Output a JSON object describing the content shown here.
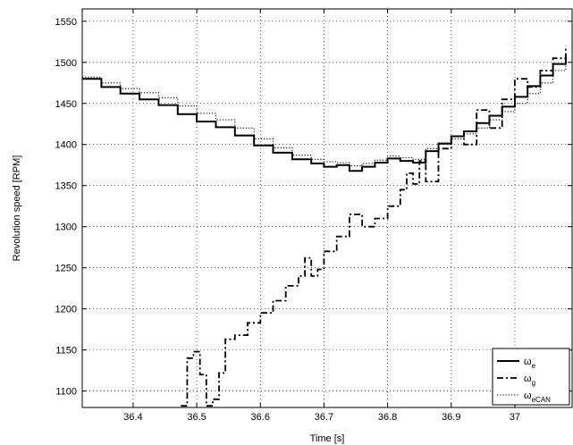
{
  "chart_data": {
    "type": "line",
    "title": "",
    "xlabel": "Time [s]",
    "ylabel": "Revolution speed [RPM]",
    "xlim": [
      36.32,
      37.09
    ],
    "ylim": [
      1080,
      1565
    ],
    "xticks": [
      36.4,
      36.5,
      36.6,
      36.7,
      36.8,
      36.9,
      37
    ],
    "xtick_labels": [
      "36.4",
      "36.5",
      "36.6",
      "36.7",
      "36.8",
      "36.9",
      "37"
    ],
    "yticks": [
      1100,
      1150,
      1200,
      1250,
      1300,
      1350,
      1400,
      1450,
      1500,
      1550
    ],
    "ytick_labels": [
      "1100",
      "1150",
      "1200",
      "1250",
      "1300",
      "1350",
      "1400",
      "1450",
      "1500",
      "1550"
    ],
    "grid": true,
    "legend_position": "bottom-right",
    "series": [
      {
        "name_main": "ω",
        "name_sub": "e",
        "style": "solid",
        "x": [
          36.32,
          36.35,
          36.38,
          36.41,
          36.44,
          36.47,
          36.5,
          36.53,
          36.56,
          36.59,
          36.62,
          36.65,
          36.68,
          36.7,
          36.72,
          36.74,
          36.76,
          36.78,
          36.8,
          36.82,
          36.84,
          36.86,
          36.88,
          36.9,
          36.92,
          36.94,
          36.96,
          36.98,
          37.0,
          37.02,
          37.04,
          37.06,
          37.08
        ],
        "y": [
          1480,
          1470,
          1462,
          1455,
          1448,
          1437,
          1428,
          1421,
          1411,
          1399,
          1390,
          1382,
          1377,
          1373,
          1375,
          1368,
          1373,
          1378,
          1383,
          1380,
          1378,
          1392,
          1401,
          1410,
          1416,
          1426,
          1435,
          1446,
          1458,
          1471,
          1484,
          1498,
          1508
        ]
      },
      {
        "name_main": "ω",
        "name_sub": "g",
        "style": "dashdot",
        "x": [
          36.475,
          36.485,
          36.495,
          36.505,
          36.515,
          36.525,
          36.535,
          36.545,
          36.56,
          36.58,
          36.6,
          36.62,
          36.64,
          36.66,
          36.67,
          36.68,
          36.69,
          36.7,
          36.72,
          36.74,
          36.76,
          36.78,
          36.8,
          36.82,
          36.83,
          36.84,
          36.85,
          36.86,
          36.88,
          36.9,
          36.92,
          36.94,
          36.96,
          36.98,
          37.0,
          37.02,
          37.04,
          37.06,
          37.08
        ],
        "y": [
          1082,
          1140,
          1148,
          1120,
          1082,
          1090,
          1122,
          1163,
          1168,
          1183,
          1195,
          1210,
          1228,
          1240,
          1262,
          1240,
          1248,
          1270,
          1288,
          1315,
          1300,
          1310,
          1325,
          1345,
          1365,
          1352,
          1380,
          1355,
          1395,
          1410,
          1400,
          1442,
          1420,
          1455,
          1480,
          1470,
          1490,
          1505,
          1520
        ]
      },
      {
        "name_main": "ω",
        "name_sub": "eCAN",
        "style": "dotted",
        "x": [
          36.32,
          36.35,
          36.38,
          36.41,
          36.44,
          36.47,
          36.5,
          36.53,
          36.56,
          36.59,
          36.62,
          36.65,
          36.68,
          36.7,
          36.72,
          36.74,
          36.76,
          36.78,
          36.8,
          36.82,
          36.84,
          36.86,
          36.88,
          36.9,
          36.92,
          36.94,
          36.96,
          36.98,
          37.0,
          37.02,
          37.04,
          37.06,
          37.08
        ],
        "y": [
          1482,
          1475,
          1468,
          1463,
          1457,
          1447,
          1438,
          1430,
          1420,
          1407,
          1396,
          1387,
          1382,
          1379,
          1378,
          1374,
          1377,
          1381,
          1386,
          1384,
          1382,
          1395,
          1402,
          1407,
          1413,
          1420,
          1430,
          1440,
          1450,
          1462,
          1475,
          1490,
          1500
        ]
      }
    ]
  }
}
